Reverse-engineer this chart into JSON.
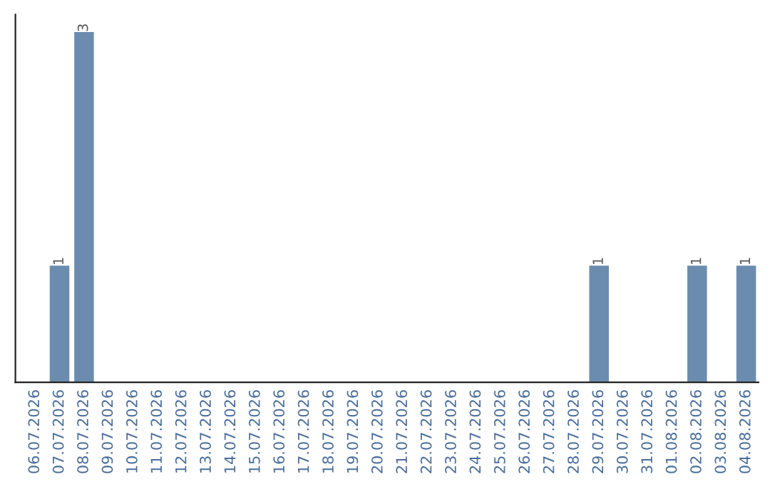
{
  "chart_data": {
    "type": "bar",
    "categories": [
      "06.07.2026",
      "07.07.2026",
      "08.07.2026",
      "09.07.2026",
      "10.07.2026",
      "11.07.2026",
      "12.07.2026",
      "13.07.2026",
      "14.07.2026",
      "15.07.2026",
      "16.07.2026",
      "17.07.2026",
      "18.07.2026",
      "19.07.2026",
      "20.07.2026",
      "21.07.2026",
      "22.07.2026",
      "23.07.2026",
      "24.07.2026",
      "25.07.2026",
      "26.07.2026",
      "27.07.2026",
      "28.07.2026",
      "29.07.2026",
      "30.07.2026",
      "31.07.2026",
      "01.08.2026",
      "02.08.2026",
      "03.08.2026",
      "04.08.2026"
    ],
    "values": [
      0,
      1,
      3,
      0,
      0,
      0,
      0,
      0,
      0,
      0,
      0,
      0,
      0,
      0,
      0,
      0,
      0,
      0,
      0,
      0,
      0,
      0,
      0,
      1,
      0,
      0,
      0,
      1,
      0,
      1
    ],
    "value_labels": [
      null,
      "1",
      "3",
      null,
      null,
      null,
      null,
      null,
      null,
      null,
      null,
      null,
      null,
      null,
      null,
      null,
      null,
      null,
      null,
      null,
      null,
      null,
      null,
      "1",
      null,
      null,
      null,
      "1",
      null,
      "1"
    ],
    "color": "#6b8cae",
    "tick_labels": "x",
    "grid": false
  }
}
